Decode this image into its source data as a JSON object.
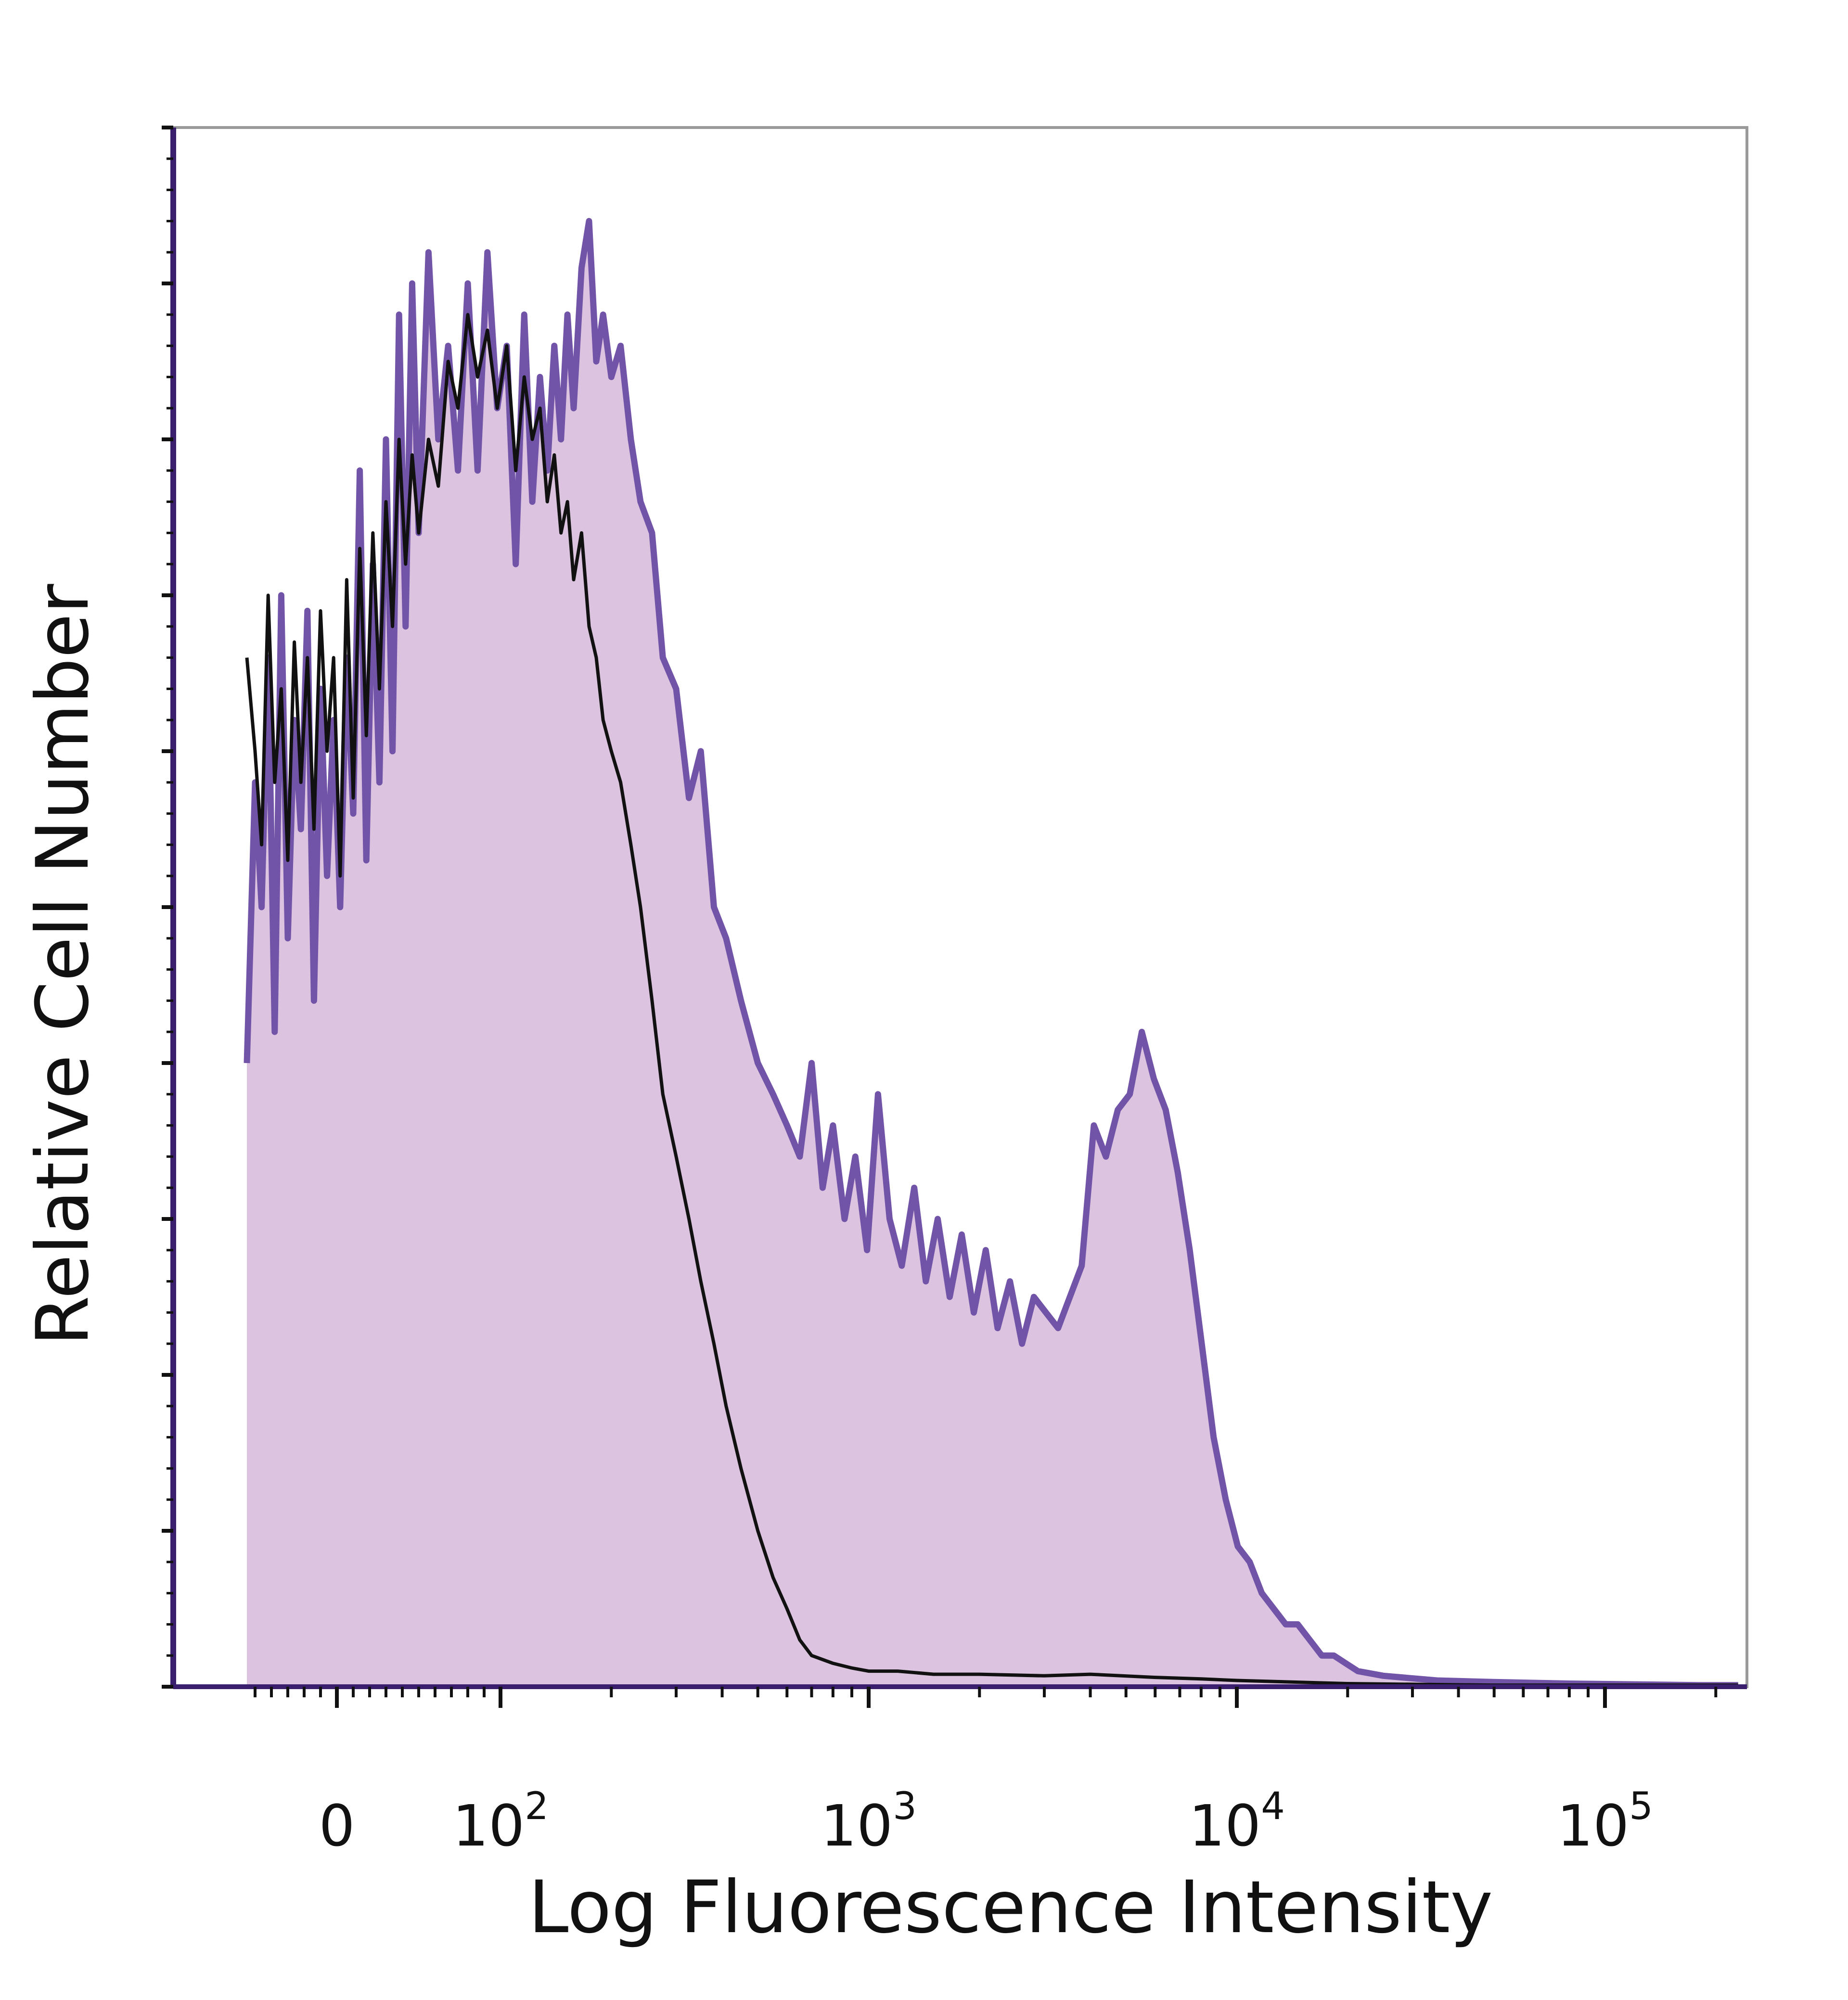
{
  "chart_data": {
    "type": "area",
    "title": "",
    "xlabel": "Log Fluorescence Intensity",
    "ylabel": "Relative Cell Number",
    "x_scale": "biexponential (linear near 0, logarithmic above 10^2)",
    "xlim": [
      -60,
      250000
    ],
    "ylim": [
      0,
      100
    ],
    "grid": false,
    "legend": "none",
    "x_ticks": [
      {
        "value": 0,
        "base": "0",
        "exp": ""
      },
      {
        "value": 100,
        "base": "10",
        "exp": "2"
      },
      {
        "value": 1000,
        "base": "10",
        "exp": "3"
      },
      {
        "value": 10000,
        "base": "10",
        "exp": "4"
      },
      {
        "value": 100000,
        "base": "10",
        "exp": "5"
      }
    ],
    "series": [
      {
        "style": "filled-outline",
        "fill": "#dcc3df",
        "stroke": "#7153a8",
        "points": [
          [
            -55,
            40
          ],
          [
            -50,
            58
          ],
          [
            -46,
            50
          ],
          [
            -42,
            66
          ],
          [
            -38,
            42
          ],
          [
            -34,
            70
          ],
          [
            -30,
            48
          ],
          [
            -26,
            62
          ],
          [
            -22,
            55
          ],
          [
            -18,
            69
          ],
          [
            -14,
            44
          ],
          [
            -10,
            64
          ],
          [
            -6,
            52
          ],
          [
            -2,
            62
          ],
          [
            2,
            50
          ],
          [
            6,
            66
          ],
          [
            10,
            56
          ],
          [
            14,
            78
          ],
          [
            18,
            53
          ],
          [
            22,
            72
          ],
          [
            26,
            58
          ],
          [
            30,
            80
          ],
          [
            34,
            60
          ],
          [
            38,
            88
          ],
          [
            42,
            68
          ],
          [
            46,
            90
          ],
          [
            50,
            74
          ],
          [
            56,
            92
          ],
          [
            62,
            80
          ],
          [
            68,
            86
          ],
          [
            74,
            78
          ],
          [
            80,
            90
          ],
          [
            86,
            78
          ],
          [
            92,
            92
          ],
          [
            98,
            82
          ],
          [
            104,
            86
          ],
          [
            110,
            72
          ],
          [
            116,
            88
          ],
          [
            122,
            76
          ],
          [
            128,
            84
          ],
          [
            134,
            78
          ],
          [
            140,
            86
          ],
          [
            146,
            80
          ],
          [
            152,
            88
          ],
          [
            158,
            82
          ],
          [
            166,
            91
          ],
          [
            174,
            94
          ],
          [
            182,
            85
          ],
          [
            190,
            88
          ],
          [
            200,
            84
          ],
          [
            212,
            86
          ],
          [
            226,
            80
          ],
          [
            240,
            76
          ],
          [
            258,
            74
          ],
          [
            276,
            66
          ],
          [
            300,
            64
          ],
          [
            325,
            57
          ],
          [
            350,
            60
          ],
          [
            380,
            50
          ],
          [
            410,
            48
          ],
          [
            450,
            44
          ],
          [
            500,
            40
          ],
          [
            550,
            38
          ],
          [
            600,
            36
          ],
          [
            650,
            34
          ],
          [
            700,
            40
          ],
          [
            750,
            32
          ],
          [
            800,
            36
          ],
          [
            860,
            30
          ],
          [
            920,
            34
          ],
          [
            990,
            28
          ],
          [
            1060,
            38
          ],
          [
            1140,
            30
          ],
          [
            1230,
            27
          ],
          [
            1330,
            32
          ],
          [
            1430,
            26
          ],
          [
            1540,
            30
          ],
          [
            1660,
            25
          ],
          [
            1790,
            29
          ],
          [
            1930,
            24
          ],
          [
            2080,
            28
          ],
          [
            2240,
            23
          ],
          [
            2420,
            26
          ],
          [
            2610,
            22
          ],
          [
            2810,
            25
          ],
          [
            3030,
            24
          ],
          [
            3270,
            23
          ],
          [
            3520,
            25
          ],
          [
            3790,
            27
          ],
          [
            4090,
            36
          ],
          [
            4410,
            34
          ],
          [
            4750,
            37
          ],
          [
            5120,
            38
          ],
          [
            5520,
            42
          ],
          [
            5950,
            39
          ],
          [
            6410,
            37
          ],
          [
            6910,
            33
          ],
          [
            7450,
            28
          ],
          [
            8030,
            22
          ],
          [
            8650,
            16
          ],
          [
            9330,
            12
          ],
          [
            10060,
            9
          ],
          [
            10840,
            8
          ],
          [
            11690,
            6
          ],
          [
            12600,
            5
          ],
          [
            13580,
            4
          ],
          [
            14640,
            4
          ],
          [
            15780,
            3
          ],
          [
            17010,
            2
          ],
          [
            18340,
            2
          ],
          [
            19770,
            1.5
          ],
          [
            21310,
            1
          ],
          [
            25000,
            0.7
          ],
          [
            35000,
            0.4
          ],
          [
            50000,
            0.3
          ],
          [
            80000,
            0.2
          ],
          [
            120000,
            0.15
          ],
          [
            180000,
            0.1
          ],
          [
            230000,
            0.1
          ]
        ]
      },
      {
        "style": "outline",
        "stroke": "#111111",
        "points": [
          [
            -55,
            66
          ],
          [
            -50,
            60
          ],
          [
            -46,
            54
          ],
          [
            -42,
            70
          ],
          [
            -38,
            58
          ],
          [
            -34,
            64
          ],
          [
            -30,
            53
          ],
          [
            -26,
            67
          ],
          [
            -22,
            58
          ],
          [
            -18,
            66
          ],
          [
            -14,
            55
          ],
          [
            -10,
            69
          ],
          [
            -6,
            60
          ],
          [
            -2,
            66
          ],
          [
            2,
            52
          ],
          [
            6,
            71
          ],
          [
            10,
            57
          ],
          [
            14,
            73
          ],
          [
            18,
            61
          ],
          [
            22,
            74
          ],
          [
            26,
            64
          ],
          [
            30,
            76
          ],
          [
            34,
            68
          ],
          [
            38,
            80
          ],
          [
            42,
            72
          ],
          [
            46,
            79
          ],
          [
            50,
            74
          ],
          [
            56,
            80
          ],
          [
            62,
            77
          ],
          [
            68,
            85
          ],
          [
            74,
            82
          ],
          [
            80,
            88
          ],
          [
            86,
            84
          ],
          [
            92,
            87
          ],
          [
            98,
            82
          ],
          [
            104,
            86
          ],
          [
            110,
            78
          ],
          [
            116,
            84
          ],
          [
            122,
            80
          ],
          [
            128,
            82
          ],
          [
            134,
            76
          ],
          [
            140,
            79
          ],
          [
            146,
            74
          ],
          [
            152,
            76
          ],
          [
            158,
            71
          ],
          [
            166,
            74
          ],
          [
            174,
            68
          ],
          [
            182,
            66
          ],
          [
            190,
            62
          ],
          [
            200,
            60
          ],
          [
            212,
            58
          ],
          [
            226,
            54
          ],
          [
            240,
            50
          ],
          [
            258,
            44
          ],
          [
            276,
            38
          ],
          [
            300,
            34
          ],
          [
            325,
            30
          ],
          [
            350,
            26
          ],
          [
            380,
            22
          ],
          [
            410,
            18
          ],
          [
            450,
            14
          ],
          [
            500,
            10
          ],
          [
            550,
            7
          ],
          [
            600,
            5
          ],
          [
            650,
            3
          ],
          [
            700,
            2
          ],
          [
            800,
            1.5
          ],
          [
            900,
            1.2
          ],
          [
            1000,
            1
          ],
          [
            1200,
            1
          ],
          [
            1500,
            0.8
          ],
          [
            2000,
            0.8
          ],
          [
            3000,
            0.7
          ],
          [
            4000,
            0.8
          ],
          [
            6000,
            0.6
          ],
          [
            8000,
            0.5
          ],
          [
            10000,
            0.4
          ],
          [
            20000,
            0.2
          ],
          [
            50000,
            0.1
          ],
          [
            230000,
            0.1
          ]
        ]
      }
    ]
  }
}
